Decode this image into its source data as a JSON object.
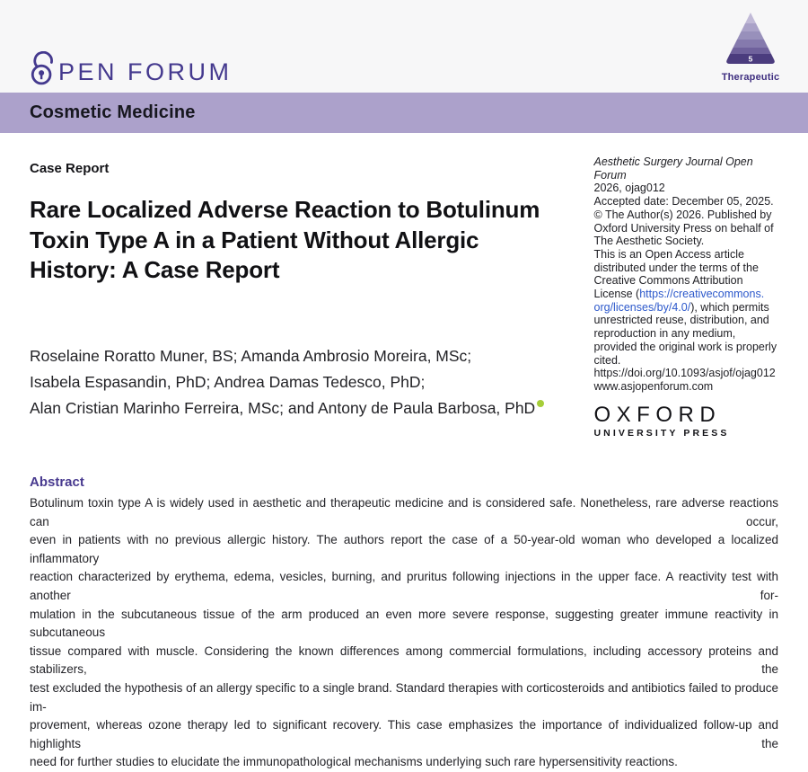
{
  "header": {
    "logo_text": "PEN FORUM",
    "pyramid": {
      "level": "5",
      "label": "Therapeutic"
    }
  },
  "banner": {
    "title": "Cosmetic Medicine"
  },
  "article": {
    "kicker": "Case Report",
    "title_lines": [
      "Rare Localized Adverse Reaction to Botulinum",
      "Toxin Type A in a Patient Without Allergic",
      "History: A Case Report"
    ],
    "author_lines": [
      {
        "text": "Roselaine Roratto Muner, BS; Amanda Ambrosio Moreira, MSc;",
        "orcid": false
      },
      {
        "text": "Isabela Espasandin, PhD; Andrea Damas Tedesco, PhD;",
        "orcid": false
      },
      {
        "text": "Alan Cristian Marinho Ferreira, MSc; and Antony de Paula Barbosa, PhD",
        "orcid": true
      }
    ]
  },
  "sidebar": {
    "lines": [
      {
        "segments": [
          {
            "text": "Aesthetic Surgery Journal Open",
            "italic": true
          }
        ]
      },
      {
        "segments": [
          {
            "text": "Forum",
            "italic": true
          }
        ]
      },
      {
        "segments": [
          {
            "text": "2026, ojag012"
          }
        ]
      },
      {
        "segments": [
          {
            "text": "Accepted date: December 05, 2025."
          }
        ]
      },
      {
        "segments": [
          {
            "text": "© The Author(s) 2026. Published by"
          }
        ]
      },
      {
        "segments": [
          {
            "text": "Oxford University Press on behalf of"
          }
        ]
      },
      {
        "segments": [
          {
            "text": "The Aesthetic Society."
          }
        ]
      },
      {
        "segments": [
          {
            "text": "This is an Open Access article"
          }
        ]
      },
      {
        "segments": [
          {
            "text": "distributed under the terms of the"
          }
        ]
      },
      {
        "segments": [
          {
            "text": "Creative Commons Attribution"
          }
        ]
      },
      {
        "segments": [
          {
            "text": "License ("
          },
          {
            "text": "https://creativecommons.",
            "link": true
          }
        ]
      },
      {
        "segments": [
          {
            "text": "org/licenses/by/4.0/",
            "link": true
          },
          {
            "text": "), which permits"
          }
        ]
      },
      {
        "segments": [
          {
            "text": "unrestricted reuse, distribution, and"
          }
        ]
      },
      {
        "segments": [
          {
            "text": "reproduction in any medium,"
          }
        ]
      },
      {
        "segments": [
          {
            "text": "provided the original work is properly"
          }
        ]
      },
      {
        "segments": [
          {
            "text": "cited."
          }
        ]
      },
      {
        "segments": [
          {
            "text": "https://doi.org/10.1093/asjof/ojag012"
          }
        ]
      },
      {
        "segments": [
          {
            "text": "www.asjopenforum.com"
          }
        ]
      }
    ],
    "oup": {
      "word": "OXFORD",
      "subtitle": "UNIVERSITY PRESS"
    }
  },
  "abstract": {
    "heading": "Abstract",
    "lines": [
      "Botulinum toxin type A is widely used in aesthetic and therapeutic medicine and is considered safe. Nonetheless, rare adverse reactions can occur,",
      "even in patients with no previous allergic history. The authors report the case of a 50-year-old woman who developed a localized inflammatory",
      "reaction characterized by erythema, edema, vesicles, burning, and pruritus following injections in the upper face. A reactivity test with another for-",
      "mulation in the subcutaneous tissue of the arm produced an even more severe response, suggesting greater immune reactivity in subcutaneous",
      "tissue compared with muscle. Considering the known differences among commercial formulations, including accessory proteins and stabilizers, the",
      "test excluded the hypothesis of an allergy specific to a single brand. Standard therapies with corticosteroids and antibiotics failed to produce im-",
      "provement, whereas ozone therapy led to significant recovery. This case emphasizes the importance of individualized follow-up and highlights the",
      "need for further studies to elucidate the immunopathological mechanisms underlying such rare hypersensitivity reactions."
    ]
  },
  "colors": {
    "header_bg": "#f7f7f8",
    "banner_bg": "#aca1cb",
    "brand_purple": "#44398e",
    "abstract_heading": "#483a8f",
    "link_blue": "#2d59cb",
    "orcid_green": "#a6ce39",
    "pyramid_bands": [
      "#c1bad7",
      "#aaa2c8",
      "#9890bb",
      "#857aad",
      "#6f619c",
      "#4b3c7e"
    ]
  }
}
